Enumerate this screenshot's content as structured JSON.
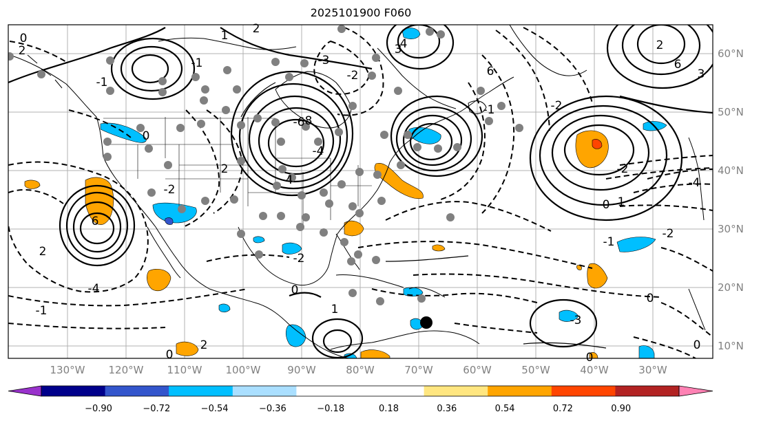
{
  "title": "2025101900 F060",
  "lon_labels": [
    "130°W",
    "120°W",
    "110°W",
    "100°W",
    "90°W",
    "80°W",
    "70°W",
    "60°W",
    "50°W",
    "40°W",
    "30°W"
  ],
  "lat_labels": [
    "60°N",
    "50°N",
    "40°N",
    "30°N",
    "20°N",
    "10°N"
  ],
  "colorbar": {
    "colors": [
      "#9932cc",
      "#00008b",
      "#3355cc",
      "#00bfff",
      "#aadfff",
      "#ffffff",
      "#ffe680",
      "#ffa500",
      "#ff4500",
      "#b22222",
      "#ff82b4",
      "#ff82b4"
    ],
    "under_color": "#9932cc",
    "over_color": "#ff82b4",
    "fill_colors": [
      "#00008b",
      "#3355cc",
      "#00bfff",
      "#aadfff",
      "#ffffff",
      "#ffffff",
      "#ffe680",
      "#ffa500",
      "#ff4500",
      "#b22222"
    ],
    "tick_labels": [
      "−0.90",
      "−0.72",
      "−0.54",
      "−0.36",
      "−0.18",
      "0.18",
      "0.36",
      "0.54",
      "0.72",
      "0.90"
    ]
  },
  "contour_labels": [
    "0",
    "2",
    "1",
    "-1",
    "2",
    "4",
    "-3",
    "3",
    "-2",
    "-6",
    "6",
    "8",
    "-4",
    "0",
    "-1",
    "-2",
    "2",
    "4",
    "6",
    "3",
    "-1",
    "2",
    "-2",
    "-4",
    "6",
    "-2",
    "-1",
    "0",
    "-2",
    "-3",
    "0",
    "1",
    "-1",
    "0",
    "-4",
    "2",
    "-2",
    "0",
    "1",
    "0",
    "2",
    "0"
  ]
}
